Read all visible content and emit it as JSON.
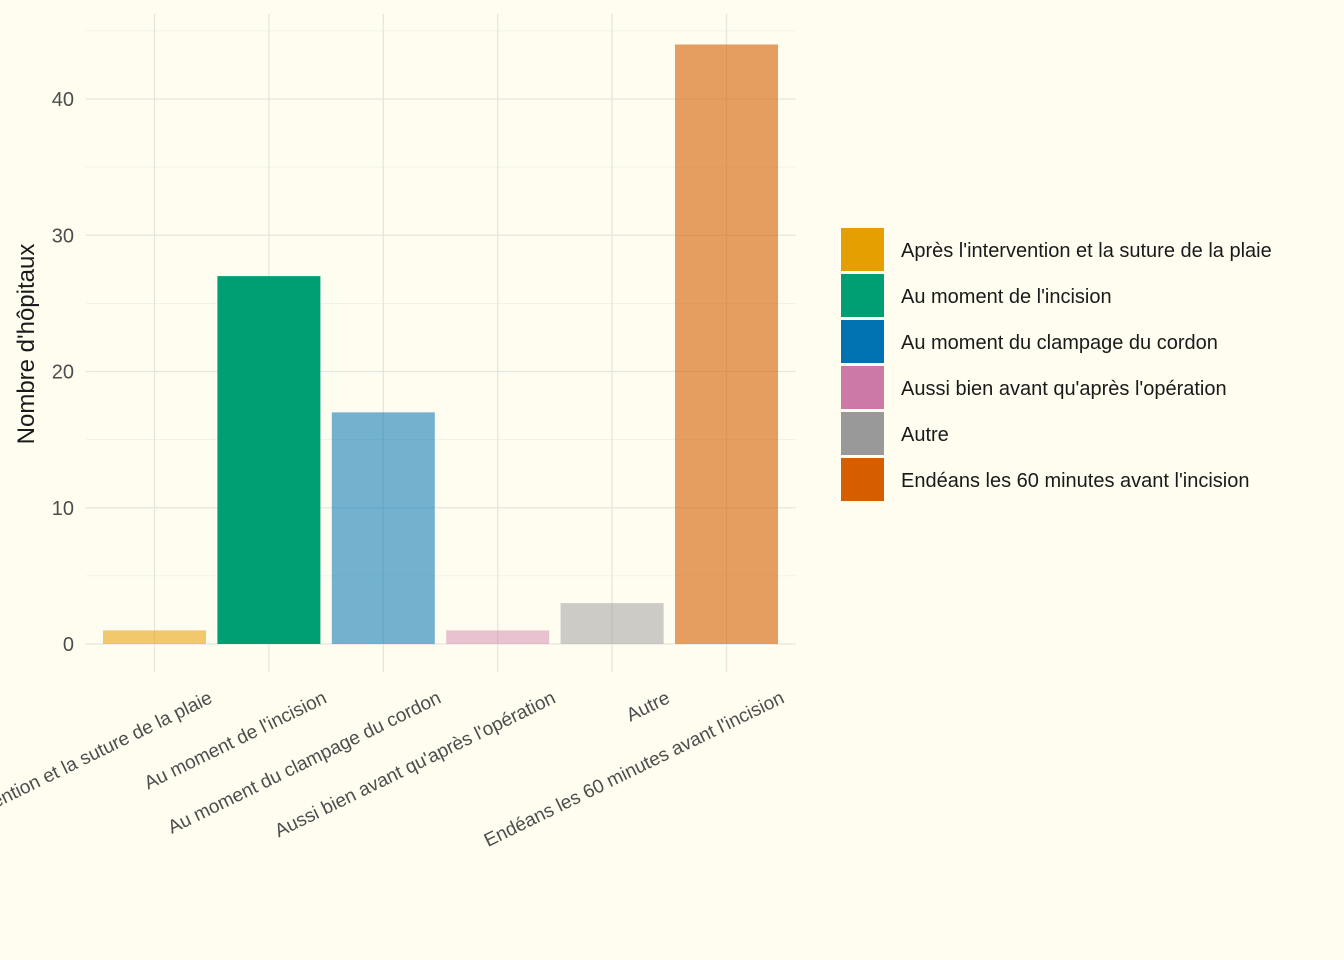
{
  "chart_data": {
    "type": "bar",
    "title": "",
    "xlabel": "",
    "ylabel": "Nombre d'hôpitaux",
    "ylim": [
      0,
      46
    ],
    "yticks": [
      0,
      10,
      20,
      30,
      40
    ],
    "grid": true,
    "legend_position": "right",
    "categories": [
      "Après l'intervention et la suture de la plaie",
      "Au moment de l'incision",
      "Au moment du clampage du cordon",
      "Aussi bien avant qu'après l'opération",
      "Autre",
      "Endéans les 60 minutes avant l'incision"
    ],
    "values": [
      1,
      27,
      17,
      1,
      3,
      44
    ],
    "colors": [
      "#E69F00",
      "#009E73",
      "#0072B2",
      "#CC79A7",
      "#999999",
      "#D55E00"
    ],
    "bar_opacity": [
      0.55,
      1.0,
      0.55,
      0.45,
      0.5,
      0.6
    ],
    "legend": {
      "entries": [
        "Après l'intervention et la suture de la plaie",
        "Au moment de l'incision",
        "Au moment du clampage du cordon",
        "Aussi bien avant qu'après l'opération",
        "Autre",
        "Endéans les 60 minutes avant l'incision"
      ]
    }
  }
}
